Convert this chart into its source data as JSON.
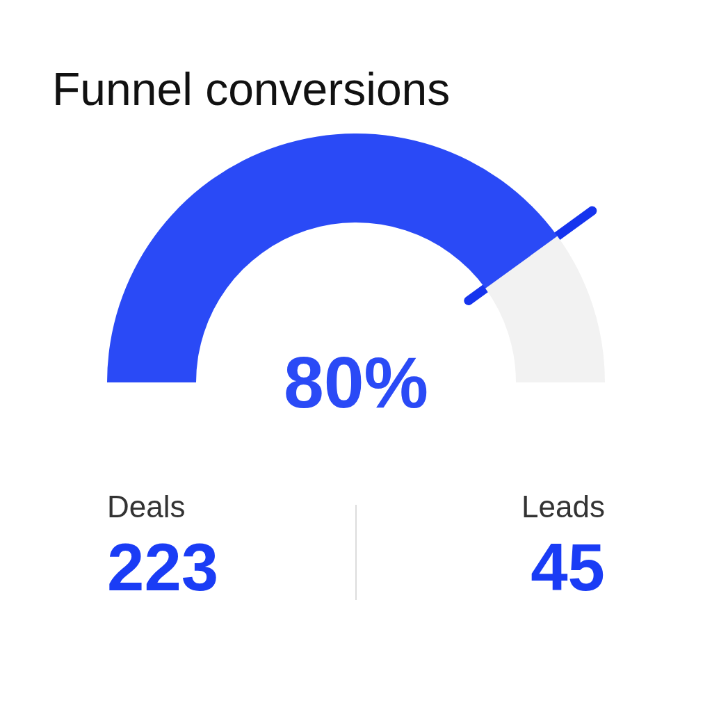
{
  "chart_data": {
    "type": "donut",
    "title": "Funnel conversions",
    "categories": [
      null,
      null
    ],
    "values": [
      80,
      20
    ],
    "colors": [
      "#2a4af6",
      "#f2f2f2"
    ],
    "value_labels": [
      "80%",
      null
    ],
    "annotations": [
      "Deals",
      "223",
      "Leads",
      "45"
    ]
  }
}
